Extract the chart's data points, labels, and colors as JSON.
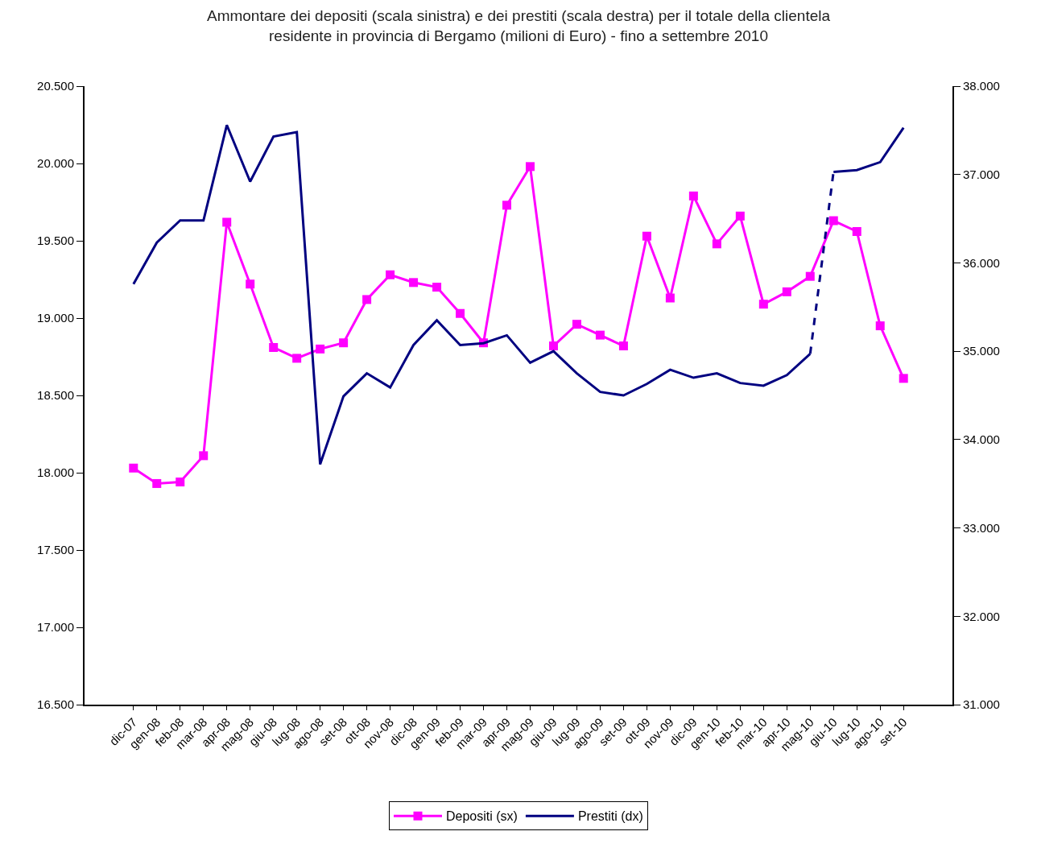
{
  "chart_data": {
    "type": "line",
    "title": "Ammontare dei depositi (scala sinistra) e dei prestiti (scala destra) per il totale della clientela\nresidente in provincia di Bergamo (milioni di Euro) - fino a settembre 2010",
    "categories": [
      "dic-07",
      "gen-08",
      "feb-08",
      "mar-08",
      "apr-08",
      "mag-08",
      "giu-08",
      "lug-08",
      "ago-08",
      "set-08",
      "ott-08",
      "nov-08",
      "dic-08",
      "gen-09",
      "feb-09",
      "mar-09",
      "apr-09",
      "mag-09",
      "giu-09",
      "lug-09",
      "ago-09",
      "set-09",
      "ott-09",
      "nov-09",
      "dic-09",
      "gen-10",
      "feb-10",
      "mar-10",
      "apr-10",
      "mag-10",
      "giu-10",
      "lug-10",
      "ago-10",
      "set-10"
    ],
    "series": [
      {
        "name": "Depositi (sx)",
        "color": "#ff00ff",
        "marker": "square",
        "line_style": "solid",
        "values": [
          18030,
          17930,
          17940,
          18110,
          19620,
          19220,
          18810,
          18740,
          18800,
          18840,
          19120,
          19280,
          19230,
          19200,
          19030,
          18840,
          19730,
          19980,
          18820,
          18960,
          18890,
          18820,
          19530,
          19130,
          19790,
          19480,
          19660,
          19090,
          19170,
          19270,
          19630,
          19560,
          18950,
          18610
        ]
      },
      {
        "name": "Prestiti (dx)",
        "color": "#000080",
        "axis": "y2",
        "marker": "none",
        "line_style": "solid",
        "values": [
          35760,
          36230,
          36480,
          36480,
          37560,
          36920,
          37430,
          37480,
          33720,
          34490,
          34750,
          34590,
          35070,
          35350,
          35070,
          35090,
          35180,
          34870,
          35000,
          34750,
          34540,
          34500,
          34630,
          34790,
          34700,
          34750,
          34640,
          34610,
          34730,
          34970,
          null,
          null,
          null,
          null
        ]
      },
      {
        "color": "#000080",
        "axis": "y2",
        "marker": "none",
        "line_style": "dashed",
        "values": [
          null,
          null,
          null,
          null,
          null,
          null,
          null,
          null,
          null,
          null,
          null,
          null,
          null,
          null,
          null,
          null,
          null,
          null,
          null,
          null,
          null,
          null,
          null,
          null,
          null,
          null,
          null,
          null,
          null,
          34970,
          37030,
          null,
          null,
          null
        ]
      },
      {
        "color": "#000080",
        "axis": "y2",
        "marker": "none",
        "line_style": "solid",
        "values": [
          null,
          null,
          null,
          null,
          null,
          null,
          null,
          null,
          null,
          null,
          null,
          null,
          null,
          null,
          null,
          null,
          null,
          null,
          null,
          null,
          null,
          null,
          null,
          null,
          null,
          null,
          null,
          null,
          null,
          null,
          37030,
          37050,
          37140,
          37530
        ]
      }
    ],
    "ylim": [
      16500,
      20500
    ],
    "yticks": [
      {
        "value": 16500,
        "label": "16.500"
      },
      {
        "value": 17000,
        "label": "17.000"
      },
      {
        "value": 17500,
        "label": "17.500"
      },
      {
        "value": 18000,
        "label": "18.000"
      },
      {
        "value": 18500,
        "label": "18.500"
      },
      {
        "value": 19000,
        "label": "19.000"
      },
      {
        "value": 19500,
        "label": "19.500"
      },
      {
        "value": 20000,
        "label": "20.000"
      },
      {
        "value": 20500,
        "label": "20.500"
      }
    ],
    "y2lim": [
      31000,
      38000
    ],
    "y2ticks": [
      {
        "value": 31000,
        "label": "31.000"
      },
      {
        "value": 32000,
        "label": "32.000"
      },
      {
        "value": 33000,
        "label": "33.000"
      },
      {
        "value": 34000,
        "label": "34.000"
      },
      {
        "value": 35000,
        "label": "35.000"
      },
      {
        "value": 36000,
        "label": "36.000"
      },
      {
        "value": 37000,
        "label": "37.000"
      },
      {
        "value": 38000,
        "label": "38.000"
      }
    ],
    "grid": false,
    "legend": "bottom"
  }
}
